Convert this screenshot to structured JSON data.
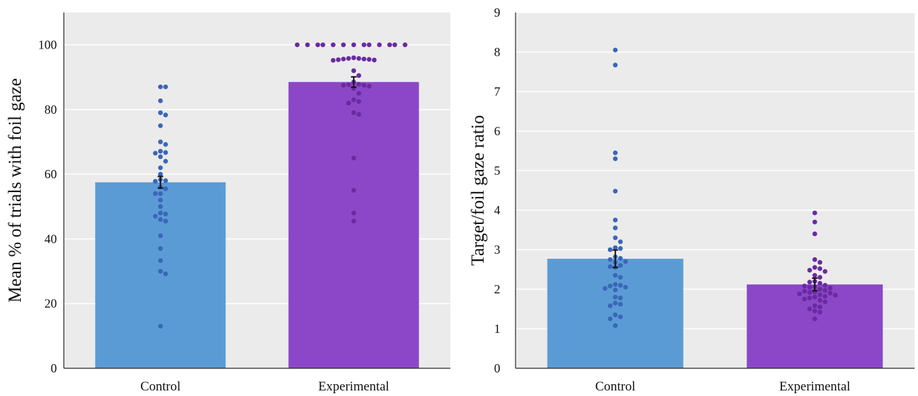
{
  "chart_data": [
    {
      "type": "bar",
      "title": "",
      "xlabel": "",
      "ylabel": "Mean % of trials with foil gaze",
      "categories": [
        "Control",
        "Experimental"
      ],
      "values": [
        57.5,
        88.5
      ],
      "error": [
        1.8,
        1.6
      ],
      "ylim": [
        0,
        110
      ],
      "yticks": [
        0,
        20,
        40,
        60,
        80,
        100
      ],
      "grid": true,
      "colors": {
        "bars": [
          "#5b9bd5",
          "#8b47c8"
        ],
        "points": [
          "#3a66b8",
          "#6a2aa0"
        ],
        "background": "#ebebeb",
        "grid": "#ffffff"
      },
      "points": [
        [
          87,
          87,
          82.7,
          79,
          78.3,
          75,
          70,
          69.2,
          67.1,
          66.7,
          66.5,
          65.4,
          64,
          62,
          60,
          58.3,
          58,
          57.8,
          56,
          55.5,
          54,
          54,
          52,
          50,
          48,
          47.7,
          47,
          46,
          45.5,
          41,
          37,
          33.3,
          30,
          29.2,
          13
        ],
        [
          100,
          100,
          100,
          100,
          100,
          100,
          100,
          100,
          100,
          100,
          100,
          100,
          100,
          96,
          95.8,
          95.8,
          95.6,
          95.6,
          95.5,
          95.4,
          95.3,
          95.2,
          92,
          90.5,
          88.5,
          87.8,
          87.7,
          87.5,
          87.5,
          87.2,
          86.5,
          85,
          83,
          82.5,
          82,
          79,
          78.5,
          65,
          55,
          48,
          45.5
        ]
      ]
    },
    {
      "type": "bar",
      "title": "",
      "xlabel": "",
      "ylabel": "Target/foil gaze ratio",
      "categories": [
        "Control",
        "Experimental"
      ],
      "values": [
        2.77,
        2.12
      ],
      "error": [
        0.22,
        0.16
      ],
      "ylim": [
        0,
        9
      ],
      "yticks": [
        0,
        1,
        2,
        3,
        4,
        5,
        6,
        7,
        8,
        9
      ],
      "grid": true,
      "colors": {
        "bars": [
          "#5b9bd5",
          "#8b47c8"
        ],
        "points": [
          "#3a66b8",
          "#6a2aa0"
        ],
        "background": "#ebebeb",
        "grid": "#ffffff"
      },
      "points": [
        [
          8.05,
          7.67,
          5.45,
          5.3,
          4.48,
          3.75,
          3.55,
          3.3,
          3.2,
          3.05,
          3.03,
          3.0,
          2.82,
          2.78,
          2.75,
          2.7,
          2.68,
          2.6,
          2.57,
          2.55,
          2.35,
          2.3,
          2.12,
          2.1,
          2.08,
          2.05,
          2.02,
          1.98,
          1.8,
          1.78,
          1.65,
          1.62,
          1.58,
          1.35,
          1.3,
          1.25,
          1.08
        ],
        [
          3.93,
          3.7,
          3.4,
          2.75,
          2.68,
          2.55,
          2.52,
          2.48,
          2.45,
          2.35,
          2.3,
          2.2,
          2.18,
          2.15,
          2.1,
          2.08,
          2.06,
          2.05,
          2.03,
          2.0,
          1.97,
          1.95,
          1.93,
          1.92,
          1.9,
          1.88,
          1.86,
          1.85,
          1.82,
          1.8,
          1.78,
          1.75,
          1.72,
          1.68,
          1.58,
          1.55,
          1.5,
          1.45,
          1.42,
          1.25
        ]
      ]
    }
  ]
}
